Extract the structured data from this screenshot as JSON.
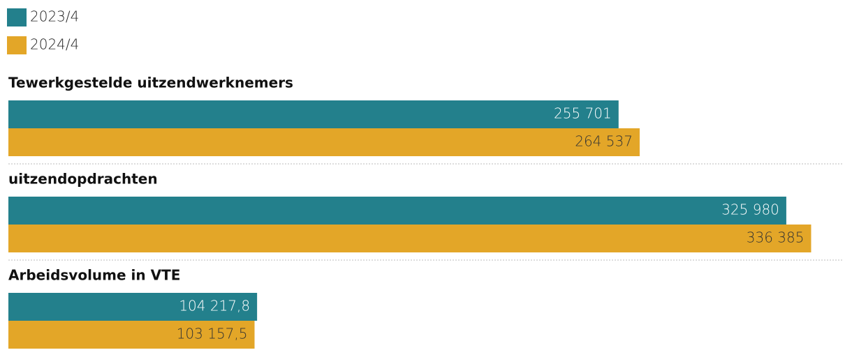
{
  "chart_data": {
    "type": "bar",
    "orientation": "horizontal",
    "categories": [
      "Tewerkgestelde uitzendwerknemers",
      "uitzendopdrachten",
      "Arbeidsvolume in VTE"
    ],
    "series": [
      {
        "name": "2023/4",
        "color": "#23808c",
        "values": [
          255701,
          325980,
          104217.8
        ],
        "value_labels": [
          "255 701",
          "325 980",
          "104 217,8"
        ]
      },
      {
        "name": "2024/4",
        "color": "#e3a628",
        "values": [
          264537,
          336385,
          103157.5
        ],
        "value_labels": [
          "264 537",
          "336 385",
          "103 157,5"
        ]
      }
    ],
    "xlim": [
      0,
      350000
    ]
  }
}
